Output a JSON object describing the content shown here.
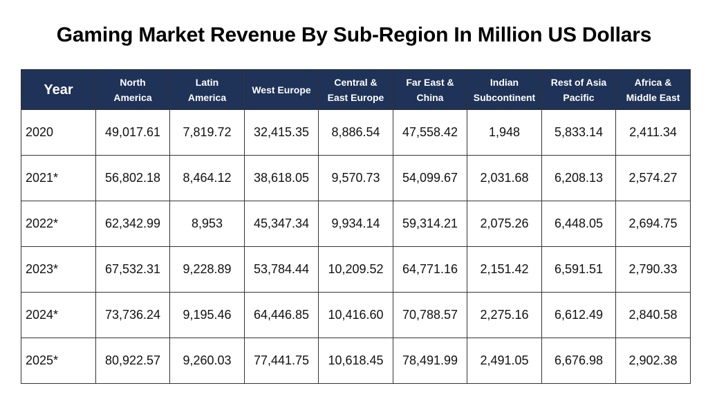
{
  "chart_data": {
    "type": "table",
    "title": "Gaming Market Revenue By Sub-Region In Million US Dollars",
    "columns": [
      [
        "Year"
      ],
      [
        "North",
        "America"
      ],
      [
        "Latin",
        "America"
      ],
      [
        "West Europe"
      ],
      [
        "Central &",
        "East Europe"
      ],
      [
        "Far East &",
        "China"
      ],
      [
        "Indian",
        "Subcontinent"
      ],
      [
        "Rest of Asia",
        "Pacific"
      ],
      [
        "Africa &",
        "Middle East"
      ]
    ],
    "rows": [
      [
        "2020",
        "49,017.61",
        "7,819.72",
        "32,415.35",
        "8,886.54",
        "47,558.42",
        "1,948",
        "5,833.14",
        "2,411.34"
      ],
      [
        "2021*",
        "56,802.18",
        "8,464.12",
        "38,618.05",
        "9,570.73",
        "54,099.67",
        "2,031.68",
        "6,208.13",
        "2,574.27"
      ],
      [
        "2022*",
        "62,342.99",
        "8,953",
        "45,347.34",
        "9,934.14",
        "59,314.21",
        "2,075.26",
        "6,448.05",
        "2,694.75"
      ],
      [
        "2023*",
        "67,532.31",
        "9,228.89",
        "53,784.44",
        "10,209.52",
        "64,771.16",
        "2,151.42",
        "6,591.51",
        "2,790.33"
      ],
      [
        "2024*",
        "73,736.24",
        "9,195.46",
        "64,446.85",
        "10,416.60",
        "70,788.57",
        "2,275.16",
        "6,612.49",
        "2,840.58"
      ],
      [
        "2025*",
        "80,922.57",
        "9,260.03",
        "77,441.75",
        "10,618.45",
        "78,491.99",
        "2,491.05",
        "6,676.98",
        "2,902.38"
      ]
    ],
    "header_color": "#1f3257"
  }
}
